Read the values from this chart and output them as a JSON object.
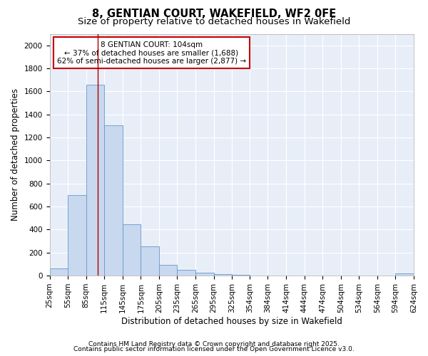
{
  "title_line1": "8, GENTIAN COURT, WAKEFIELD, WF2 0FE",
  "title_line2": "Size of property relative to detached houses in Wakefield",
  "xlabel": "Distribution of detached houses by size in Wakefield",
  "ylabel": "Number of detached properties",
  "bar_color": "#c8d8ee",
  "bar_edge_color": "#6699cc",
  "fig_background": "#ffffff",
  "ax_background": "#e8eef8",
  "grid_color": "#ffffff",
  "annotation_box_color": "#cc0000",
  "vline_color": "#aa0000",
  "annotation_text_line1": "8 GENTIAN COURT: 104sqm",
  "annotation_text_line2": "← 37% of detached houses are smaller (1,688)",
  "annotation_text_line3": "62% of semi-detached houses are larger (2,877) →",
  "property_size": 104,
  "bin_edges": [
    25,
    55,
    85,
    115,
    145,
    175,
    205,
    235,
    265,
    295,
    325,
    354,
    384,
    414,
    444,
    474,
    504,
    534,
    564,
    594,
    624
  ],
  "bin_heights": [
    65,
    700,
    1660,
    1306,
    447,
    257,
    95,
    50,
    25,
    10,
    5,
    2,
    1,
    0,
    0,
    0,
    0,
    0,
    0,
    20
  ],
  "ylim": [
    0,
    2100
  ],
  "yticks": [
    0,
    200,
    400,
    600,
    800,
    1000,
    1200,
    1400,
    1600,
    1800,
    2000
  ],
  "tick_labels": [
    "25sqm",
    "55sqm",
    "85sqm",
    "115sqm",
    "145sqm",
    "175sqm",
    "205sqm",
    "235sqm",
    "265sqm",
    "295sqm",
    "325sqm",
    "354sqm",
    "384sqm",
    "414sqm",
    "444sqm",
    "474sqm",
    "504sqm",
    "534sqm",
    "564sqm",
    "594sqm",
    "624sqm"
  ],
  "footer_line1": "Contains HM Land Registry data © Crown copyright and database right 2025.",
  "footer_line2": "Contains public sector information licensed under the Open Government Licence v3.0.",
  "title_fontsize": 10.5,
  "subtitle_fontsize": 9.5,
  "axis_label_fontsize": 8.5,
  "tick_fontsize": 7.5,
  "annotation_fontsize": 7.5,
  "footer_fontsize": 6.5
}
